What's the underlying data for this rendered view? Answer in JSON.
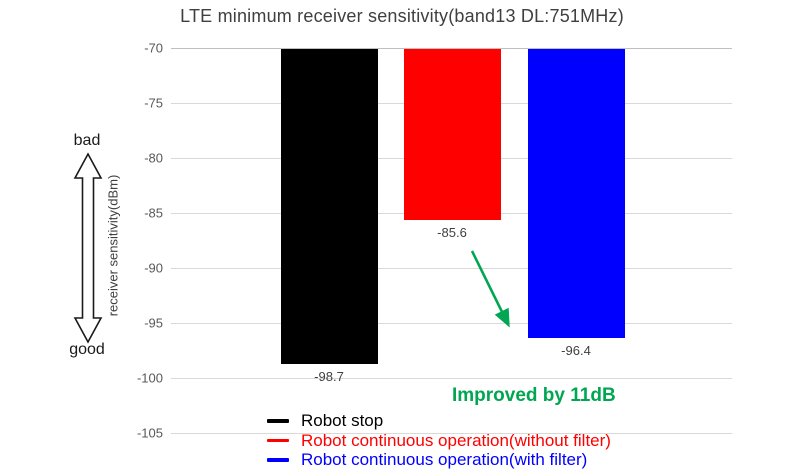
{
  "chart_data": {
    "type": "bar",
    "title": "LTE minimum receiver sensitivity(band13 DL:751MHz)",
    "ylabel": "receiver sensitivity(dBm)",
    "ylim": [
      -105,
      -70
    ],
    "baseline": -70,
    "yticks": [
      -70,
      -75,
      -80,
      -85,
      -90,
      -95,
      -100,
      -105
    ],
    "grid": true,
    "legend_position": "bottom-right",
    "series": [
      {
        "name": "Robot stop",
        "value": -98.7,
        "label": "-98.7",
        "color": "#000000"
      },
      {
        "name": "Robot continuous operation(without filter)",
        "value": -85.6,
        "label": "-85.6",
        "color": "#ff0000"
      },
      {
        "name": "Robot continuous operation(with filter)",
        "value": -96.4,
        "label": "-96.4",
        "color": "#0000ff"
      }
    ]
  },
  "qualitative_axis": {
    "top": "bad",
    "bottom": "good"
  },
  "annotation": {
    "text": "Improved by 11dB",
    "color": "#00a651"
  }
}
